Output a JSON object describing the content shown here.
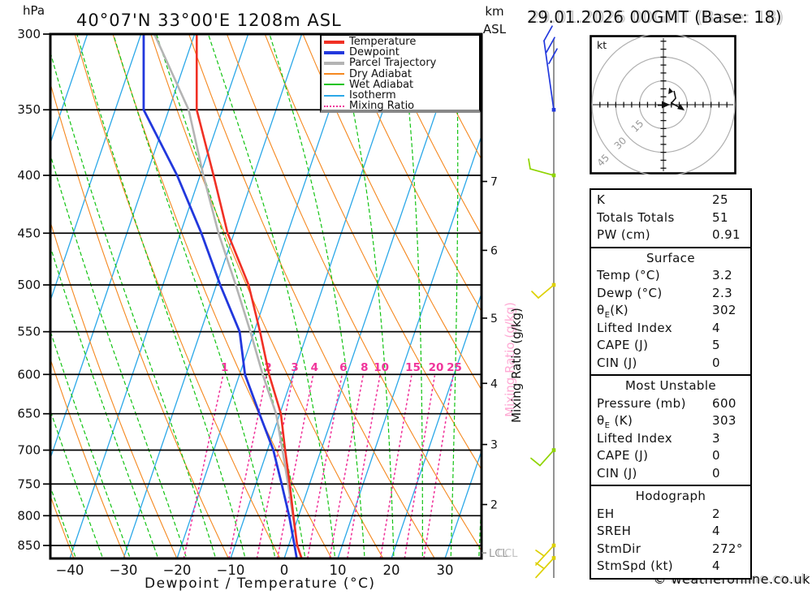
{
  "header": {
    "pressure_unit": "hPa",
    "title": "40°07'N 33°00'E 1208m ASL",
    "altitude_unit_line1": "km",
    "altitude_unit_line2": "ASL",
    "datetime": "29.01.2026 00GMT (Base: 18)"
  },
  "footer": {
    "copyright": "© weatheronline.co.uk"
  },
  "axes": {
    "pressure_ticks": [
      300,
      350,
      400,
      450,
      500,
      550,
      600,
      650,
      700,
      750,
      800,
      850
    ],
    "temp_ticks": [
      -40,
      -30,
      -20,
      -10,
      0,
      10,
      20,
      30
    ],
    "temp_axis_label": "Dewpoint / Temperature (°C)",
    "mixing_axis_label": "Mixing Ratio (g/kg)",
    "km_ticks": [
      {
        "km": 7,
        "p": 405
      },
      {
        "km": 6,
        "p": 466
      },
      {
        "km": 5,
        "p": 535
      },
      {
        "km": 4,
        "p": 611
      },
      {
        "km": 3,
        "p": 692
      },
      {
        "km": 2,
        "p": 782
      }
    ],
    "lcl_label": "LCL",
    "ccl_label": "CCL",
    "lcl_pressure_hpa": 863
  },
  "legend": {
    "items": [
      {
        "label": "Temperature",
        "color": "#f03024",
        "thick": true,
        "dotted": false
      },
      {
        "label": "Dewpoint",
        "color": "#2238dd",
        "thick": true,
        "dotted": false
      },
      {
        "label": "Parcel Trajectory",
        "color": "#b4b4b4",
        "thick": true,
        "dotted": false
      },
      {
        "label": "Dry Adiabat",
        "color": "#f5881f",
        "thick": false,
        "dotted": false
      },
      {
        "label": "Wet Adiabat",
        "color": "#12c312",
        "thick": false,
        "dotted": false
      },
      {
        "label": "Isotherm",
        "color": "#2ba8e8",
        "thick": false,
        "dotted": false
      },
      {
        "label": "Mixing Ratio",
        "color": "#f0359b",
        "thick": false,
        "dotted": true
      }
    ]
  },
  "chart_data": {
    "type": "line",
    "subtype": "skew-t_log-p_sounding",
    "x_axis_label": "Dewpoint / Temperature (°C)",
    "y_axis_unit": "hPa",
    "xlim": [
      -44,
      37
    ],
    "ylim": [
      872,
      300
    ],
    "pressure_hpa": [
      872,
      850,
      800,
      750,
      700,
      650,
      600,
      550,
      500,
      450,
      400,
      350,
      300
    ],
    "series": [
      {
        "name": "Temperature",
        "color": "#f03024",
        "values_c": [
          3.2,
          1.6,
          -1.0,
          -3.7,
          -6.7,
          -9.8,
          -14.5,
          -18.9,
          -24.0,
          -31.2,
          -37.5,
          -44.8,
          -49.6
        ]
      },
      {
        "name": "Dewpoint",
        "color": "#2238dd",
        "values_c": [
          2.3,
          1.1,
          -1.8,
          -5.2,
          -8.9,
          -13.8,
          -19.0,
          -22.7,
          -29.3,
          -36.1,
          -44.3,
          -54.7,
          -59.5
        ]
      },
      {
        "name": "Parcel Trajectory",
        "color": "#b4b4b4",
        "values_c": [
          3.2,
          1.6,
          -1.1,
          -4.0,
          -7.2,
          -10.7,
          -15.7,
          -20.7,
          -26.4,
          -32.9,
          -39.4,
          -46.3,
          -57.5
        ]
      }
    ],
    "background": {
      "isotherms_c": {
        "min": -110,
        "max": 40,
        "step": 10,
        "color": "#2ba8e8"
      },
      "dry_adiabats_c": {
        "min": -40,
        "max": 220,
        "step": 10,
        "color": "#f5881f"
      },
      "wet_adiabats_c": {
        "min": -60,
        "max": 40,
        "step": 5,
        "color": "#12c312"
      },
      "mixing_ratio_lines_gkg": [
        1,
        2,
        3,
        4,
        6,
        8,
        10,
        15,
        20,
        25
      ],
      "mixing_ratio_color": "#f0359b"
    },
    "wind_barbs": [
      {
        "pressure_hpa": 350,
        "color": "#2238dd",
        "segments": [
          [
            [
              0,
              0
            ],
            [
              -12,
              -85
            ]
          ],
          [
            [
              -12,
              -85
            ],
            [
              -2,
              -103
            ]
          ],
          [
            [
              -9,
              -71
            ],
            [
              1,
              -89
            ]
          ],
          [
            [
              -6,
              -57
            ],
            [
              4,
              -75
            ]
          ]
        ]
      },
      {
        "pressure_hpa": 400,
        "color": "#8fd400",
        "segments": [
          [
            [
              0,
              0
            ],
            [
              -29,
              -8
            ]
          ],
          [
            [
              -29,
              -8
            ],
            [
              -31,
              -20
            ]
          ]
        ]
      },
      {
        "pressure_hpa": 500,
        "color": "#ddd000",
        "segments": [
          [
            [
              0,
              0
            ],
            [
              -19,
              16
            ]
          ],
          [
            [
              -19,
              16
            ],
            [
              -27,
              8
            ]
          ]
        ]
      },
      {
        "pressure_hpa": 700,
        "color": "#8fd400",
        "segments": [
          [
            [
              0,
              0
            ],
            [
              -17,
              19
            ]
          ],
          [
            [
              -17,
              19
            ],
            [
              -28,
              10
            ]
          ]
        ]
      },
      {
        "pressure_hpa": 850,
        "color": "#ddd000",
        "segments": [
          [
            [
              0,
              0
            ],
            [
              -22,
              24
            ]
          ],
          [
            [
              -12,
              13
            ],
            [
              -22,
              6
            ]
          ]
        ]
      },
      {
        "pressure_hpa": 872,
        "color": "#ddd000",
        "segments": [
          [
            [
              0,
              0
            ],
            [
              -22,
              24
            ]
          ],
          [
            [
              -12,
              13
            ],
            [
              -22,
              6
            ]
          ]
        ]
      }
    ]
  },
  "hodograph": {
    "unit_label": "kt",
    "ring_radii_kt": [
      15,
      30,
      45
    ],
    "tick_step_kt": 5,
    "trace_kt": [
      [
        6.7,
        8.7
      ],
      [
        7.7,
        4.1
      ],
      [
        5.1,
        1.0
      ],
      [
        11.8,
        -2.6
      ]
    ],
    "storm_motion": {
      "dir_deg": 272,
      "speed_kt": 4
    }
  },
  "panel": {
    "sections": [
      {
        "header": "",
        "rows": [
          [
            "K",
            "25"
          ],
          [
            "Totals Totals",
            "51"
          ],
          [
            "PW (cm)",
            "0.91"
          ]
        ]
      },
      {
        "header": "Surface",
        "rows": [
          [
            "Temp (°C)",
            "3.2"
          ],
          [
            "Dewp (°C)",
            "2.3"
          ],
          [
            "θ_E(K)",
            "302"
          ],
          [
            "Lifted Index",
            "4"
          ],
          [
            "CAPE (J)",
            "5"
          ],
          [
            "CIN (J)",
            "0"
          ]
        ]
      },
      {
        "header": "Most Unstable",
        "rows": [
          [
            "Pressure (mb)",
            "600"
          ],
          [
            "θ_E (K)",
            "303"
          ],
          [
            "Lifted Index",
            "3"
          ],
          [
            "CAPE (J)",
            "0"
          ],
          [
            "CIN (J)",
            "0"
          ]
        ]
      },
      {
        "header": "Hodograph",
        "rows": [
          [
            "EH",
            "2"
          ],
          [
            "SREH",
            "4"
          ],
          [
            "StmDir",
            "272°"
          ],
          [
            "StmSpd (kt)",
            "4"
          ]
        ]
      }
    ]
  }
}
